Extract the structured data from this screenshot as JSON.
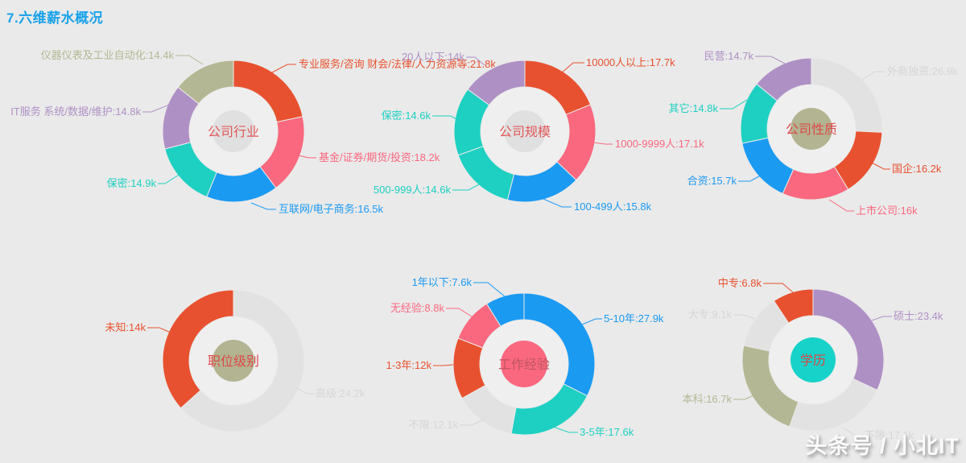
{
  "page": {
    "title": "7.六维薪水概况",
    "title_color": "#18a2ea",
    "background": "#eaeaea",
    "watermark": "头条号 / 小北IT",
    "watermark_color": "#fafafa"
  },
  "palette": {
    "red": "#e8512f",
    "pink": "#f9687e",
    "blue": "#1b9af2",
    "teal": "#1dd0c2",
    "purple": "#af90c5",
    "olive": "#b4b793",
    "muted_gray": "#e2e2e2"
  },
  "chart_data": [
    {
      "type": "donut",
      "title": "公司行业",
      "title_color": "#e25858",
      "center_color": "#e0e0e0",
      "inner_radius": 55,
      "outer_radius": 88,
      "unit": "k",
      "items": [
        {
          "name": "专业服务/咨询 财会/法律/人力资源等",
          "value": 21.8,
          "label": "专业服务/咨询 财会/法律/人力资源等:21.8k",
          "color": "#e8512f",
          "label_color": "#e8512f"
        },
        {
          "name": "基金/证券/期货/投资",
          "value": 18.2,
          "label": "基金/证券/期货/投资:18.2k",
          "color": "#f9687e",
          "label_color": "#f9687e"
        },
        {
          "name": "互联网/电子商务",
          "value": 16.5,
          "label": "互联网/电子商务:16.5k",
          "color": "#1b9af2",
          "label_color": "#1b9af2"
        },
        {
          "name": "保密",
          "value": 14.9,
          "label": "保密:14.9k",
          "color": "#1dd0c2",
          "label_color": "#1dd0c2"
        },
        {
          "name": "IT服务 系统/数据/维护",
          "value": 14.8,
          "label": "IT服务 系统/数据/维护:14.8k",
          "color": "#af90c5",
          "label_color": "#af90c5"
        },
        {
          "name": "仪器仪表及工业自动化",
          "value": 14.4,
          "label": "仪器仪表及工业自动化:14.4k",
          "color": "#b4b793",
          "label_color": "#b4b793"
        }
      ]
    },
    {
      "type": "donut",
      "title": "公司规模",
      "title_color": "#e25858",
      "center_color": "#e0e0e0",
      "inner_radius": 55,
      "outer_radius": 88,
      "unit": "k",
      "items": [
        {
          "name": "10000人以上",
          "value": 17.7,
          "label": "10000人以上:17.7k",
          "color": "#e8512f",
          "label_color": "#e8512f"
        },
        {
          "name": "1000-9999人",
          "value": 17.1,
          "label": "1000-9999人:17.1k",
          "color": "#f9687e",
          "label_color": "#f9687e"
        },
        {
          "name": "100-499人",
          "value": 15.8,
          "label": "100-499人:15.8k",
          "color": "#1b9af2",
          "label_color": "#1b9af2"
        },
        {
          "name": "500-999人",
          "value": 14.6,
          "label": "500-999人:14.6k",
          "color": "#1dd0c2",
          "label_color": "#1dd0c2"
        },
        {
          "name": "保密",
          "value": 14.6,
          "label": "保密:14.6k",
          "color": "#1dd0c2",
          "label_color": "#1dd0c2"
        },
        {
          "name": "20人以下",
          "value": 14.0,
          "label": "20人以下:14k",
          "color": "#af90c5",
          "label_color": "#af90c5"
        }
      ]
    },
    {
      "type": "donut",
      "title": "公司性质",
      "title_color": "#dd4848",
      "center_color": "#b3b491",
      "inner_radius": 55,
      "outer_radius": 88,
      "unit": "k",
      "items": [
        {
          "name": "外商独资",
          "value": 26.9,
          "label": "外商独资:26.9k",
          "color": "#e2e2e2",
          "label_color": "#d6d6d6"
        },
        {
          "name": "国企",
          "value": 16.2,
          "label": "国企:16.2k",
          "color": "#e8512f",
          "label_color": "#e8512f"
        },
        {
          "name": "上市公司",
          "value": 16.0,
          "label": "上市公司:16k",
          "color": "#f9687e",
          "label_color": "#f9687e"
        },
        {
          "name": "合资",
          "value": 15.7,
          "label": "合资:15.7k",
          "color": "#1b9af2",
          "label_color": "#1b9af2"
        },
        {
          "name": "其它",
          "value": 14.8,
          "label": "其它:14.8k",
          "color": "#1dd0c2",
          "label_color": "#1dd0c2"
        },
        {
          "name": "民营",
          "value": 14.7,
          "label": "民营:14.7k",
          "color": "#af90c5",
          "label_color": "#af90c5"
        }
      ]
    },
    {
      "type": "donut",
      "title": "职位级别",
      "title_color": "#dd4848",
      "center_color": "#b3b491",
      "inner_radius": 55,
      "outer_radius": 88,
      "unit": "k",
      "items": [
        {
          "name": "高级",
          "value": 24.2,
          "label": "高级:24.2k",
          "color": "#e2e2e2",
          "label_color": "#d6d6d6"
        },
        {
          "name": "未知",
          "value": 14.0,
          "label": "未知:14k",
          "color": "#e8512f",
          "label_color": "#e8512f"
        }
      ]
    },
    {
      "type": "donut",
      "title": "工作经验",
      "title_color": "#c05560",
      "center_color": "#f9687e",
      "inner_radius": 55,
      "outer_radius": 88,
      "unit": "k",
      "items": [
        {
          "name": "5-10年",
          "value": 27.9,
          "label": "5-10年:27.9k",
          "color": "#1b9af2",
          "label_color": "#1b9af2"
        },
        {
          "name": "3-5年",
          "value": 17.6,
          "label": "3-5年:17.6k",
          "color": "#1dd0c2",
          "label_color": "#1dd0c2"
        },
        {
          "name": "不限",
          "value": 12.1,
          "label": "不限:12.1k",
          "color": "#e2e2e2",
          "label_color": "#d6d6d6"
        },
        {
          "name": "1-3年",
          "value": 12.0,
          "label": "1-3年:12k",
          "color": "#e8512f",
          "label_color": "#e8512f"
        },
        {
          "name": "无经验",
          "value": 8.8,
          "label": "无经验:8.8k",
          "color": "#f9687e",
          "label_color": "#f9687e"
        },
        {
          "name": "1年以下",
          "value": 7.6,
          "label": "1年以下:7.6k",
          "color": "#1b9af2",
          "label_color": "#1b9af2"
        }
      ]
    },
    {
      "type": "donut",
      "title": "学历",
      "title_color": "#e04343",
      "center_color": "#16d2c9",
      "inner_radius": 55,
      "outer_radius": 88,
      "unit": "k",
      "items": [
        {
          "name": "硕士",
          "value": 23.4,
          "label": "硕士:23.4k",
          "color": "#af90c5",
          "label_color": "#af90c5"
        },
        {
          "name": "不限",
          "value": 17.1,
          "label": "不限:17.1k",
          "color": "#e2e2e2",
          "label_color": "#d6d6d6"
        },
        {
          "name": "本科",
          "value": 16.7,
          "label": "本科:16.7k",
          "color": "#b4b793",
          "label_color": "#b4b793"
        },
        {
          "name": "大专",
          "value": 9.1,
          "label": "大专:9.1k",
          "color": "#e2e2e2",
          "label_color": "#d6d6d6"
        },
        {
          "name": "中专",
          "value": 6.8,
          "label": "中专:6.8k",
          "color": "#e8512f",
          "label_color": "#e8512f"
        }
      ]
    }
  ]
}
